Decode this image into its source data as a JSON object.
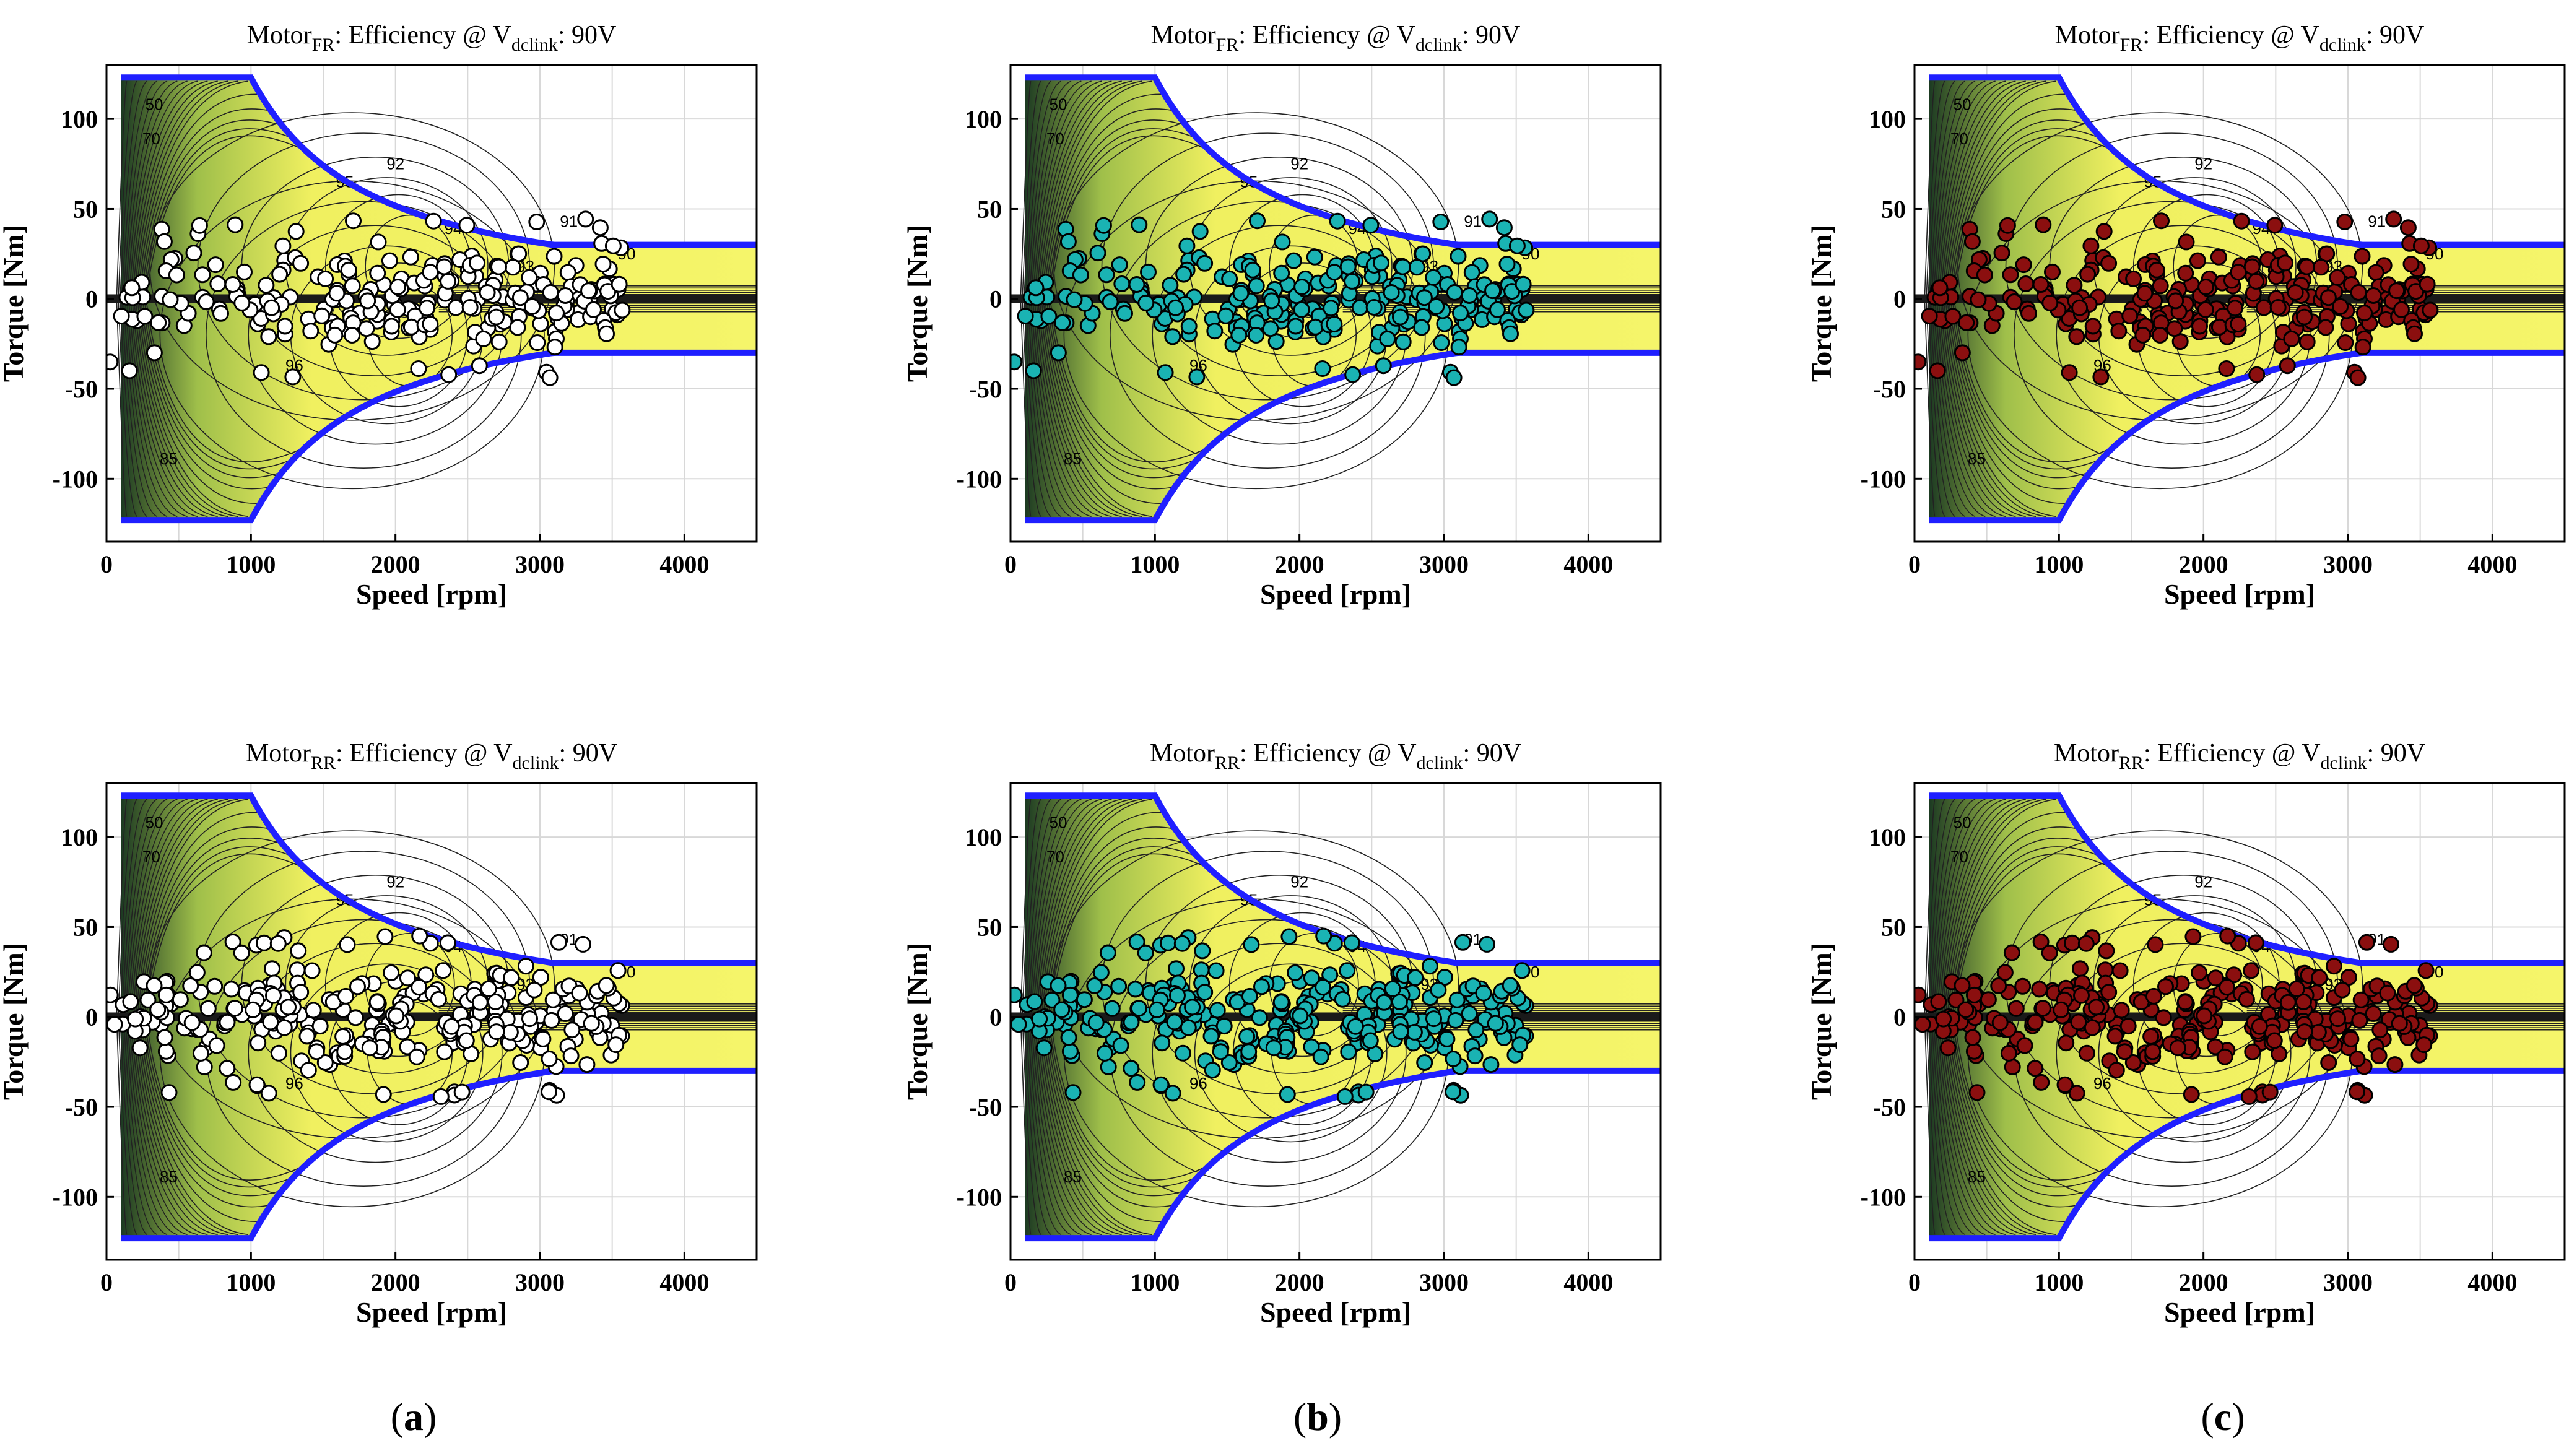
{
  "figure": {
    "captions": [
      {
        "open": "(",
        "letter": "a",
        "close": ")"
      },
      {
        "open": "(",
        "letter": "b",
        "close": ")"
      },
      {
        "open": "(",
        "letter": "c",
        "close": ")"
      }
    ]
  },
  "colors": {
    "map_fill": "#f0f060",
    "map_fill_dark": "#1c3a22",
    "envelope": "#1f1fff",
    "marker_white": "#ffffff",
    "marker_teal": "#1ab3b3",
    "marker_red": "#8b0f0f"
  },
  "chart_data": [
    {
      "type": "scatter",
      "title_prefix": "Motor",
      "title_subscript": "FR",
      "title_middle": ":  Efficiency @ V",
      "title_subscript2": "dclink",
      "title_suffix": ": 90V",
      "xlabel": "Speed [rpm]",
      "ylabel": "Torque [Nm]",
      "xlim": [
        0,
        4500
      ],
      "ylim": [
        -135,
        130
      ],
      "xticks": [
        0,
        1000,
        2000,
        3000,
        4000
      ],
      "xtick_labels": [
        "0",
        "1000",
        "2000",
        "3000",
        "4000"
      ],
      "yticks": [
        -100,
        -50,
        0,
        50,
        100
      ],
      "ytick_labels": [
        "-100",
        "-50",
        "0",
        "50",
        "100"
      ],
      "torque_limit_nm": 123,
      "base_speed_rpm": 1000,
      "high_speed_limit_nm": 30,
      "contour_labels": [
        "95",
        "94",
        "93",
        "92",
        "91",
        "90",
        "96",
        "85",
        "70",
        "50"
      ],
      "marker_series": "white",
      "seed": 11,
      "point_count": 260
    },
    {
      "type": "scatter",
      "title_prefix": "Motor",
      "title_subscript": "FR",
      "title_middle": ":  Efficiency @ V",
      "title_subscript2": "dclink",
      "title_suffix": ": 90V",
      "xlabel": "Speed [rpm]",
      "ylabel": "Torque [Nm]",
      "xlim": [
        0,
        4500
      ],
      "ylim": [
        -135,
        130
      ],
      "xticks": [
        0,
        1000,
        2000,
        3000,
        4000
      ],
      "xtick_labels": [
        "0",
        "1000",
        "2000",
        "3000",
        "4000"
      ],
      "yticks": [
        -100,
        -50,
        0,
        50,
        100
      ],
      "ytick_labels": [
        "-100",
        "-50",
        "0",
        "50",
        "100"
      ],
      "torque_limit_nm": 123,
      "base_speed_rpm": 1000,
      "high_speed_limit_nm": 30,
      "contour_labels": [
        "95",
        "94",
        "93",
        "92",
        "91",
        "90",
        "96",
        "85",
        "70",
        "50"
      ],
      "marker_series": "teal",
      "seed": 11,
      "point_count": 260
    },
    {
      "type": "scatter",
      "title_prefix": "Motor",
      "title_subscript": "FR",
      "title_middle": ":  Efficiency @ V",
      "title_subscript2": "dclink",
      "title_suffix": ": 90V",
      "xlabel": "Speed [rpm]",
      "ylabel": "Torque [Nm]",
      "xlim": [
        0,
        4500
      ],
      "ylim": [
        -135,
        130
      ],
      "xticks": [
        0,
        1000,
        2000,
        3000,
        4000
      ],
      "xtick_labels": [
        "0",
        "1000",
        "2000",
        "3000",
        "4000"
      ],
      "yticks": [
        -100,
        -50,
        0,
        50,
        100
      ],
      "ytick_labels": [
        "-100",
        "-50",
        "0",
        "50",
        "100"
      ],
      "torque_limit_nm": 123,
      "base_speed_rpm": 1000,
      "high_speed_limit_nm": 30,
      "contour_labels": [
        "95",
        "94",
        "93",
        "92",
        "91",
        "90",
        "96",
        "85",
        "70",
        "50"
      ],
      "marker_series": "red",
      "seed": 11,
      "point_count": 260
    },
    {
      "type": "scatter",
      "title_prefix": "Motor",
      "title_subscript": "RR",
      "title_middle": ":  Efficiency @ V",
      "title_subscript2": "dclink",
      "title_suffix": ": 90V",
      "xlabel": "Speed [rpm]",
      "ylabel": "Torque [Nm]",
      "xlim": [
        0,
        4500
      ],
      "ylim": [
        -135,
        130
      ],
      "xticks": [
        0,
        1000,
        2000,
        3000,
        4000
      ],
      "xtick_labels": [
        "0",
        "1000",
        "2000",
        "3000",
        "4000"
      ],
      "yticks": [
        -100,
        -50,
        0,
        50,
        100
      ],
      "ytick_labels": [
        "-100",
        "-50",
        "0",
        "50",
        "100"
      ],
      "torque_limit_nm": 123,
      "base_speed_rpm": 1000,
      "high_speed_limit_nm": 30,
      "contour_labels": [
        "95",
        "94",
        "93",
        "92",
        "91",
        "90",
        "96",
        "85",
        "70",
        "50"
      ],
      "marker_series": "white",
      "seed": 23,
      "point_count": 300
    },
    {
      "type": "scatter",
      "title_prefix": "Motor",
      "title_subscript": "RR",
      "title_middle": ":  Efficiency @ V",
      "title_subscript2": "dclink",
      "title_suffix": ": 90V",
      "xlabel": "Speed [rpm]",
      "ylabel": "Torque [Nm]",
      "xlim": [
        0,
        4500
      ],
      "ylim": [
        -135,
        130
      ],
      "xticks": [
        0,
        1000,
        2000,
        3000,
        4000
      ],
      "xtick_labels": [
        "0",
        "1000",
        "2000",
        "3000",
        "4000"
      ],
      "yticks": [
        -100,
        -50,
        0,
        50,
        100
      ],
      "ytick_labels": [
        "-100",
        "-50",
        "0",
        "50",
        "100"
      ],
      "torque_limit_nm": 123,
      "base_speed_rpm": 1000,
      "high_speed_limit_nm": 30,
      "contour_labels": [
        "95",
        "94",
        "93",
        "92",
        "91",
        "90",
        "96",
        "85",
        "70",
        "50"
      ],
      "marker_series": "teal",
      "seed": 23,
      "point_count": 300
    },
    {
      "type": "scatter",
      "title_prefix": "Motor",
      "title_subscript": "RR",
      "title_middle": ":  Efficiency @ V",
      "title_subscript2": "dclink",
      "title_suffix": ": 90V",
      "xlabel": "Speed [rpm]",
      "ylabel": "Torque [Nm]",
      "xlim": [
        0,
        4500
      ],
      "ylim": [
        -135,
        130
      ],
      "xticks": [
        0,
        1000,
        2000,
        3000,
        4000
      ],
      "xtick_labels": [
        "0",
        "1000",
        "2000",
        "3000",
        "4000"
      ],
      "yticks": [
        -100,
        -50,
        0,
        50,
        100
      ],
      "ytick_labels": [
        "-100",
        "-50",
        "0",
        "50",
        "100"
      ],
      "torque_limit_nm": 123,
      "base_speed_rpm": 1000,
      "high_speed_limit_nm": 30,
      "contour_labels": [
        "95",
        "94",
        "93",
        "92",
        "91",
        "90",
        "96",
        "85",
        "70",
        "50"
      ],
      "marker_series": "red",
      "seed": 23,
      "point_count": 300
    }
  ]
}
